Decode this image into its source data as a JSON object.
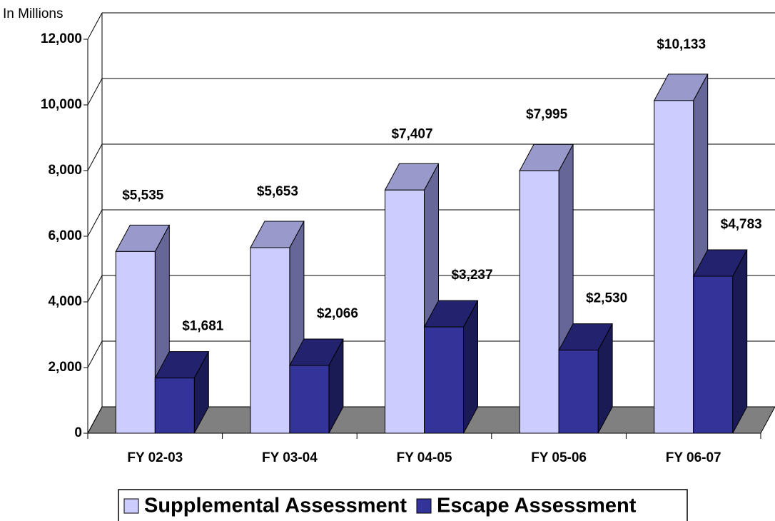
{
  "chart_data": {
    "type": "bar3d",
    "y_label": "In Millions",
    "categories": [
      "FY 02-03",
      "FY 03-04",
      "FY 04-05",
      "FY 05-06",
      "FY 06-07"
    ],
    "series": [
      {
        "name": "Supplemental Assessment",
        "color": "#ccccff",
        "values": [
          5535,
          5653,
          7407,
          7995,
          10133
        ],
        "value_labels": [
          "$5,535",
          "$5,653",
          "$7,407",
          "$7,995",
          "$10,133"
        ]
      },
      {
        "name": "Escape Assessment",
        "color": "#333399",
        "values": [
          1681,
          2066,
          3237,
          2530,
          4783
        ],
        "value_labels": [
          "$1,681",
          "$2,066",
          "$3,237",
          "$2,530",
          "$4,783"
        ]
      }
    ],
    "ylim": [
      0,
      12000
    ],
    "yticks": [
      0,
      {
        "value": 2000,
        "label": "2,000"
      },
      {
        "value": 4000,
        "label": "4,000"
      },
      {
        "value": 6000,
        "label": "6,000"
      },
      {
        "value": 8000,
        "label": "8,000"
      },
      {
        "value": 10000,
        "label": "10,000"
      },
      {
        "value": 12000,
        "label": "12,000"
      }
    ],
    "grid": true,
    "legend": "bottom"
  }
}
